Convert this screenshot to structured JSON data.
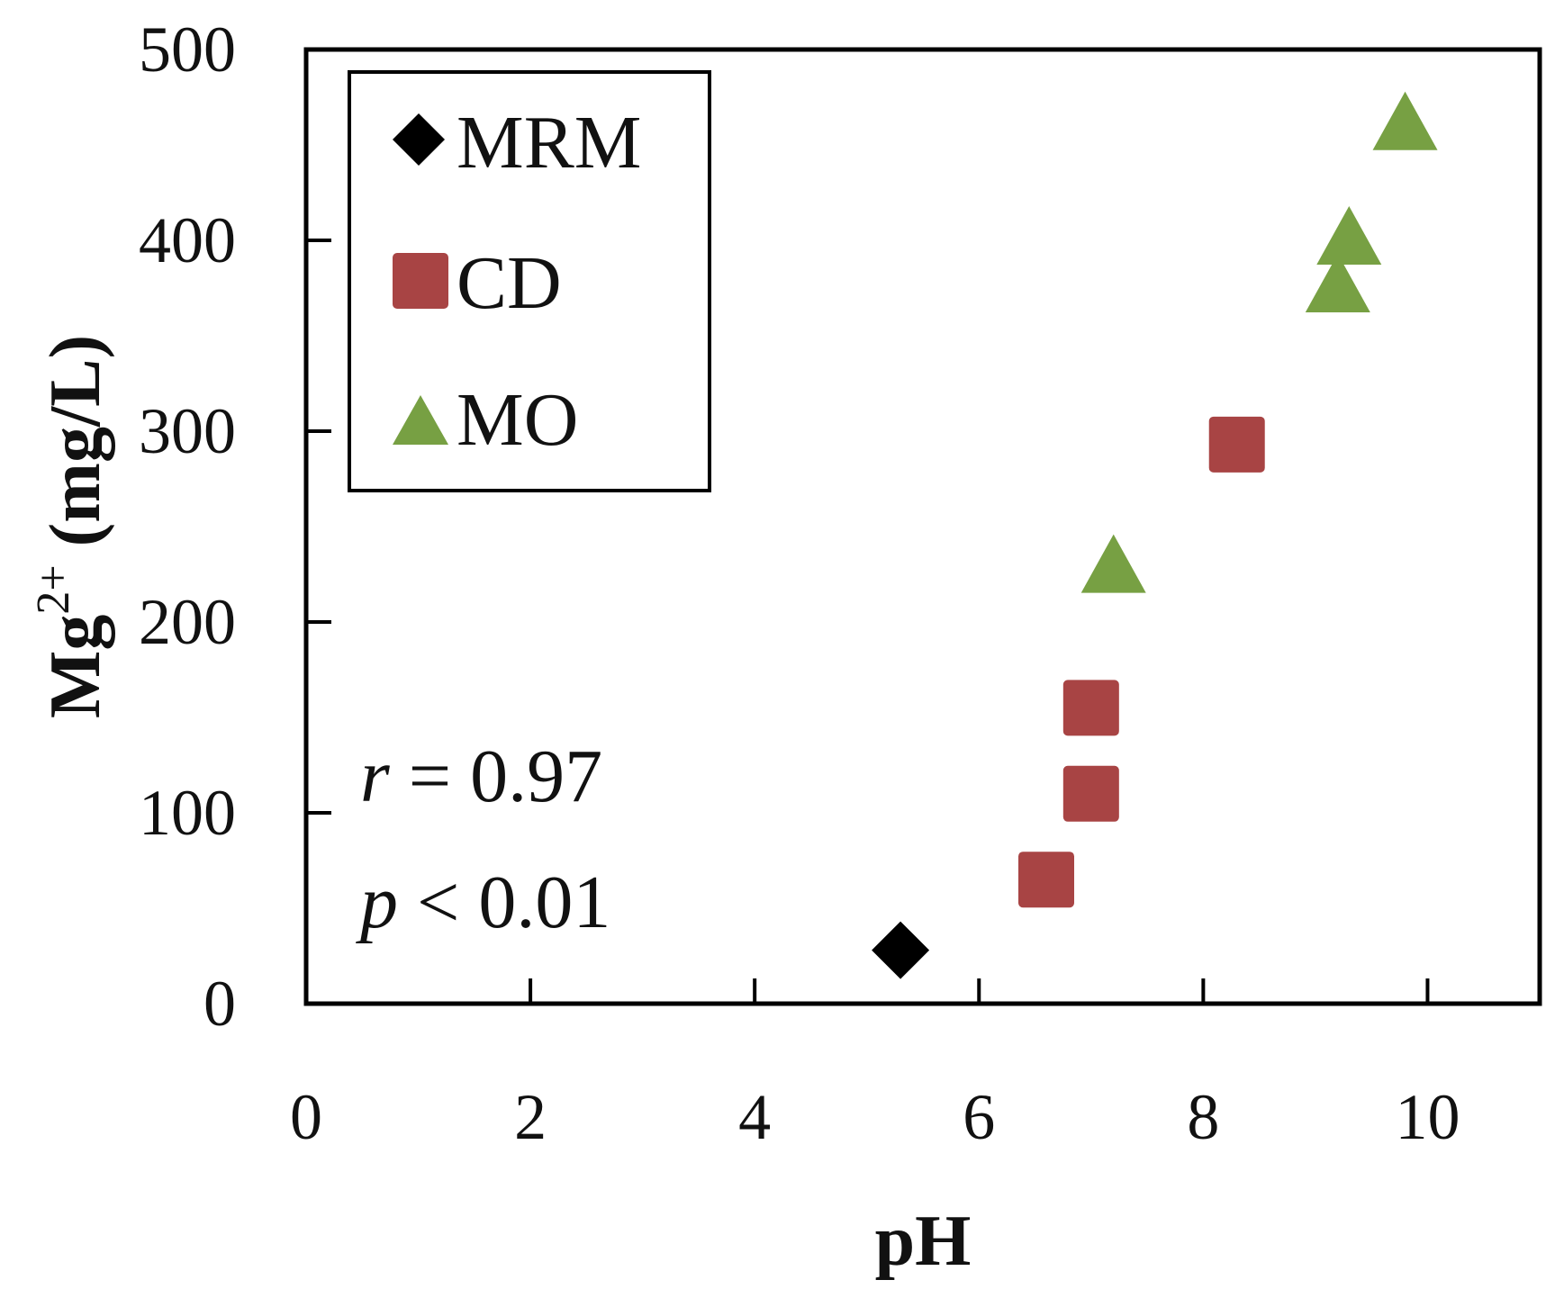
{
  "chart_data": {
    "type": "scatter",
    "title": "",
    "xlabel": "pH",
    "ylabel_main": "Mg",
    "ylabel_sup": "2+",
    "ylabel_unit": " (mg/L)",
    "xlim": [
      0,
      11
    ],
    "ylim": [
      0,
      500
    ],
    "xticks": [
      0,
      2,
      4,
      6,
      8,
      10
    ],
    "yticks": [
      0,
      100,
      200,
      300,
      400,
      500
    ],
    "grid": false,
    "legend_position": "top-left",
    "series": [
      {
        "name": "MRM",
        "marker": "diamond",
        "color": "#000000",
        "points": [
          {
            "x": 5.3,
            "y": 28
          }
        ]
      },
      {
        "name": "CD",
        "marker": "square",
        "color": "#A84444",
        "points": [
          {
            "x": 6.6,
            "y": 65
          },
          {
            "x": 7.0,
            "y": 110
          },
          {
            "x": 7.0,
            "y": 155
          },
          {
            "x": 8.3,
            "y": 293
          }
        ]
      },
      {
        "name": "MO",
        "marker": "triangle",
        "color": "#77A043",
        "points": [
          {
            "x": 7.2,
            "y": 228
          },
          {
            "x": 9.2,
            "y": 375
          },
          {
            "x": 9.3,
            "y": 400
          },
          {
            "x": 9.8,
            "y": 460
          }
        ]
      }
    ],
    "annotations": {
      "r_symbol": "r",
      "r_rest": " = 0.97",
      "p_symbol": "p",
      "p_rest": " < 0.01"
    }
  }
}
